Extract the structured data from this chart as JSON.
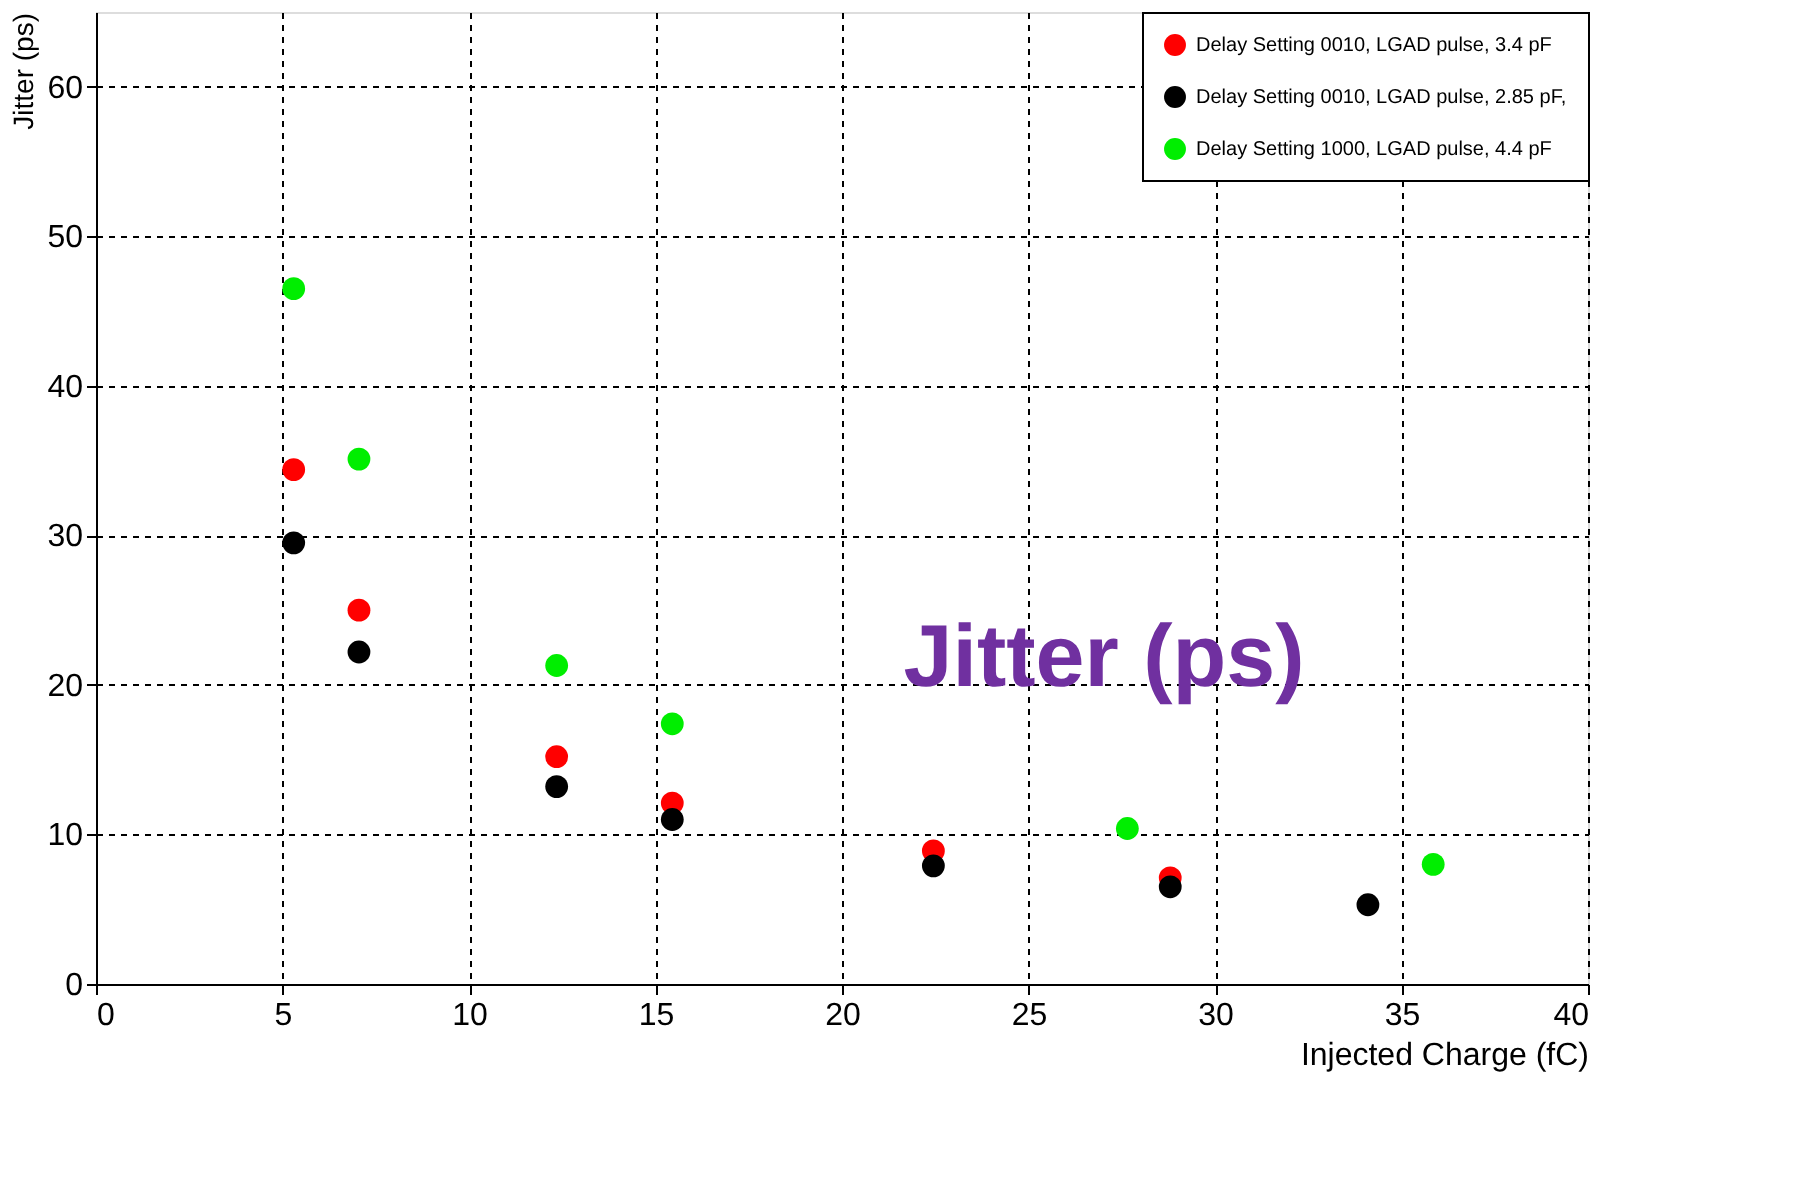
{
  "chart_data": {
    "type": "scatter",
    "xlabel": "Injected Charge (fC)",
    "ylabel": "Jitter (ps)",
    "xlim": [
      0,
      40
    ],
    "xticks": [
      0,
      5,
      10,
      15,
      20,
      25,
      30,
      35,
      40
    ],
    "ylim": [
      0,
      65
    ],
    "yticks": [
      0,
      10,
      20,
      30,
      40,
      50,
      60
    ],
    "grid": true,
    "legend": "top right",
    "marker": "circle",
    "series": [
      {
        "name": "Delay Setting 0010, LGAD pulse, 3.4 pF",
        "color": "#ff0000",
        "x": [
          5.3,
          7.05,
          12.35,
          15.45,
          22.45,
          28.8
        ],
        "values": [
          34.4,
          25.0,
          15.2,
          12.1,
          8.9,
          7.1
        ]
      },
      {
        "name": "Delay Setting 0010, LGAD pulse, 2.85 pF,",
        "color": "#000000",
        "x": [
          5.3,
          7.05,
          12.35,
          15.45,
          22.45,
          28.8,
          34.1
        ],
        "values": [
          29.5,
          22.2,
          13.2,
          11.0,
          7.9,
          6.5,
          5.3
        ]
      },
      {
        "name": "Delay Setting 1000, LGAD pulse, 4.4 pF",
        "color": "#00ee00",
        "x": [
          5.3,
          7.05,
          12.35,
          15.45,
          27.65,
          35.85
        ],
        "values": [
          46.5,
          35.1,
          21.3,
          17.4,
          10.4,
          8.0
        ]
      }
    ],
    "annotations": [
      "Jitter (ps)"
    ]
  }
}
